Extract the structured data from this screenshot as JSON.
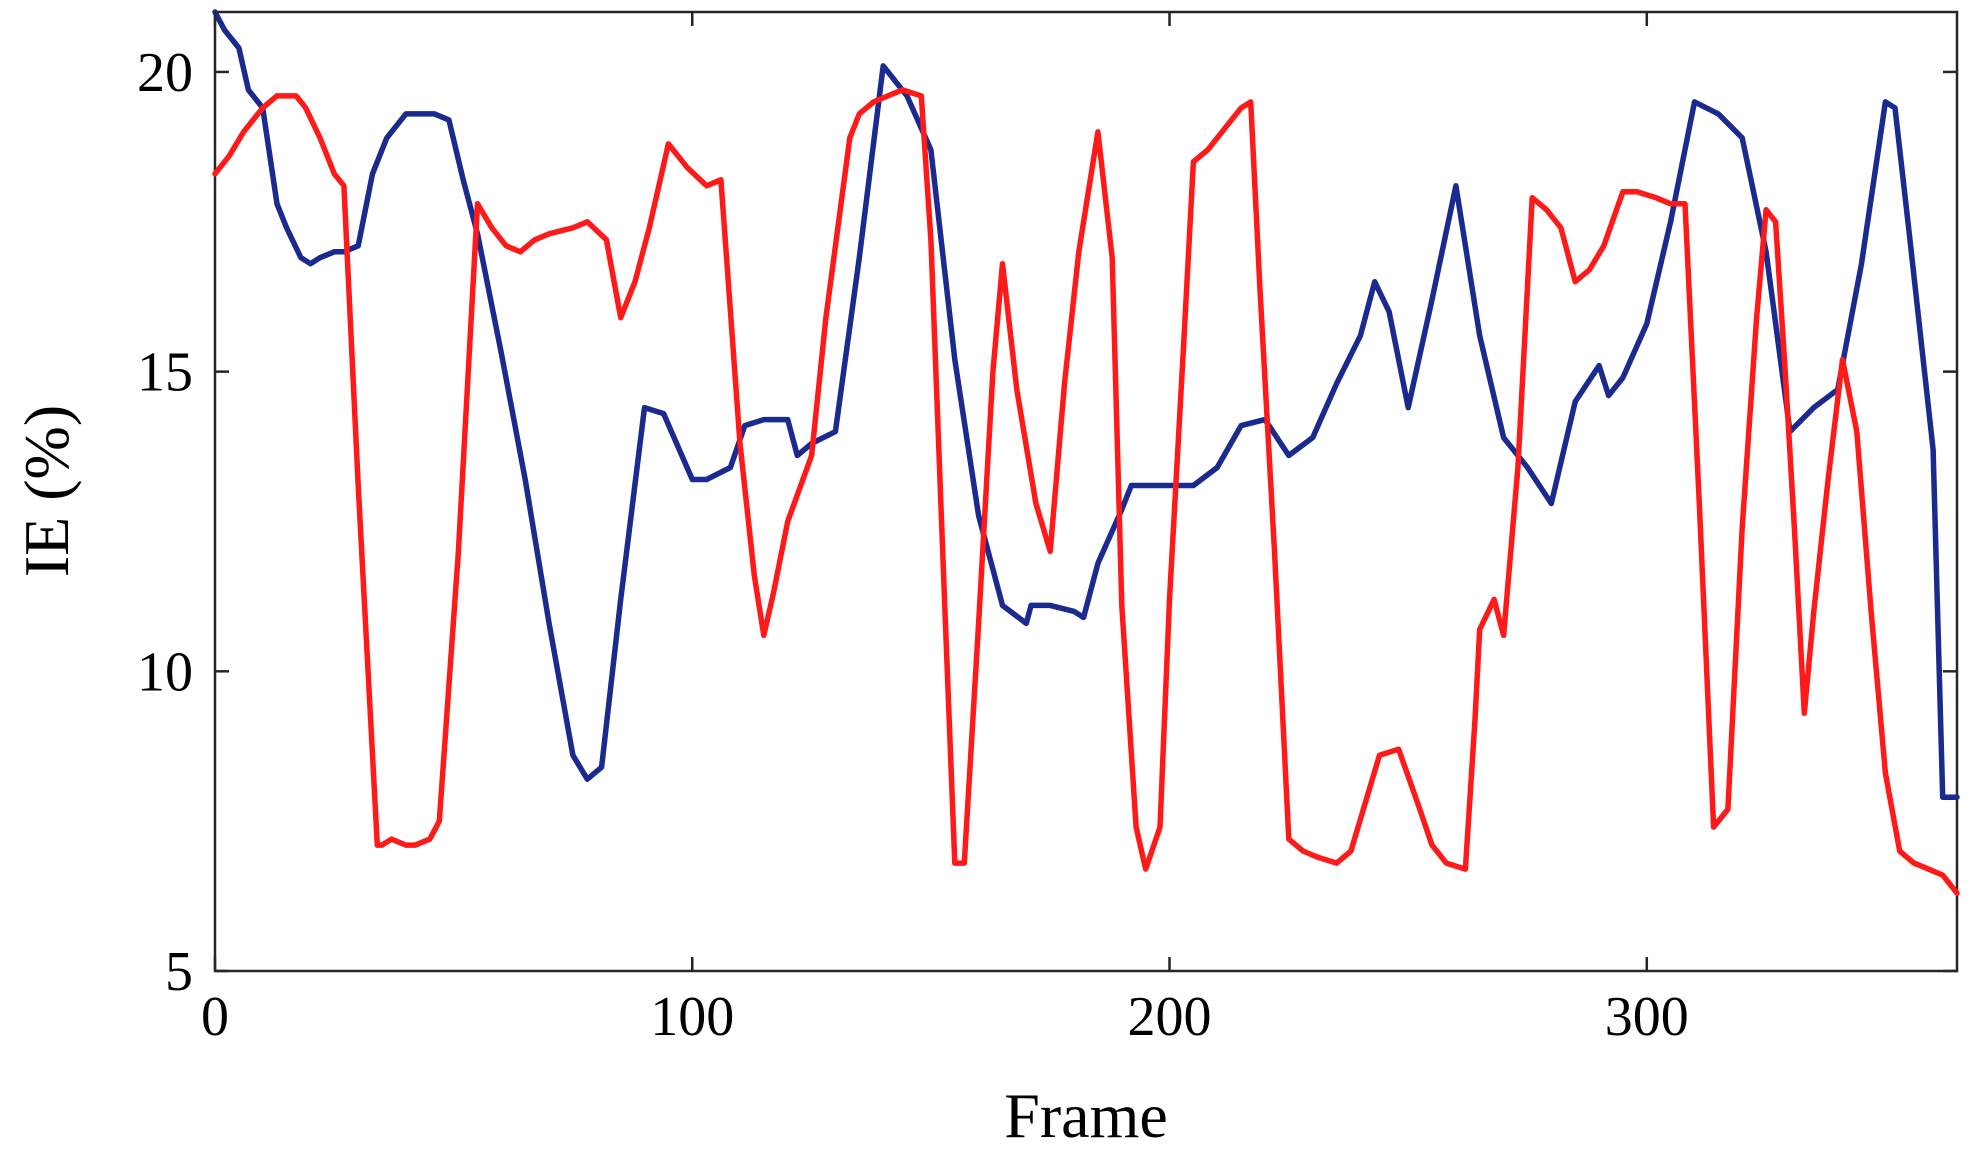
{
  "chart_data": {
    "type": "line",
    "xlabel": "Frame",
    "ylabel": "IE (%)",
    "xlim": [
      0,
      365
    ],
    "ylim": [
      5,
      21
    ],
    "xticks": [
      0,
      100,
      200,
      300
    ],
    "yticks": [
      5,
      10,
      15,
      20
    ],
    "grid": false,
    "legend": "none",
    "series": [
      {
        "color": "#1a2a8f",
        "x": [
          0,
          2,
          5,
          7,
          10,
          13,
          15,
          18,
          20,
          22,
          25,
          27,
          30,
          33,
          36,
          40,
          43,
          46,
          49,
          52,
          55,
          60,
          65,
          70,
          75,
          78,
          81,
          85,
          90,
          94,
          100,
          103,
          108,
          111,
          115,
          120,
          122,
          125,
          130,
          135,
          140,
          145,
          150,
          155,
          160,
          165,
          170,
          171,
          175,
          180,
          182,
          185,
          190,
          192,
          195,
          200,
          205,
          210,
          215,
          220,
          225,
          230,
          235,
          240,
          243,
          246,
          250,
          255,
          260,
          265,
          270,
          275,
          280,
          285,
          290,
          292,
          295,
          300,
          305,
          310,
          315,
          320,
          325,
          330,
          335,
          340,
          345,
          350,
          352,
          355,
          360,
          362,
          365
        ],
        "y": [
          21.0,
          20.7,
          20.4,
          19.7,
          19.4,
          17.8,
          17.4,
          16.9,
          16.8,
          16.9,
          17.0,
          17.0,
          17.1,
          18.3,
          18.9,
          19.3,
          19.3,
          19.3,
          19.2,
          18.2,
          17.3,
          15.3,
          13.2,
          10.8,
          8.6,
          8.2,
          8.4,
          11.2,
          14.4,
          14.3,
          13.2,
          13.2,
          13.4,
          14.1,
          14.2,
          14.2,
          13.6,
          13.8,
          14.0,
          16.9,
          20.1,
          19.6,
          18.7,
          15.2,
          12.6,
          11.1,
          10.8,
          11.1,
          11.1,
          11.0,
          10.9,
          11.8,
          12.7,
          13.1,
          13.1,
          13.1,
          13.1,
          13.4,
          14.1,
          14.2,
          13.6,
          13.9,
          14.8,
          15.6,
          16.5,
          16.0,
          14.4,
          16.2,
          18.1,
          15.6,
          13.9,
          13.4,
          12.8,
          14.5,
          15.1,
          14.6,
          14.9,
          15.8,
          17.5,
          19.5,
          19.3,
          18.9,
          17.0,
          14.0,
          14.4,
          14.7,
          16.8,
          19.5,
          19.4,
          17.3,
          13.7,
          7.9,
          7.9
        ]
      },
      {
        "color": "#ff1a1a",
        "x": [
          0,
          3,
          6,
          10,
          13,
          15,
          17,
          19,
          22,
          25,
          27,
          30,
          34,
          35,
          37,
          40,
          42,
          45,
          47,
          51,
          55,
          58,
          61,
          64,
          67,
          70,
          75,
          78,
          82,
          85,
          88,
          91,
          95,
          99,
          103,
          106,
          110,
          113,
          115,
          117,
          120,
          125,
          128,
          133,
          135,
          138,
          141,
          144,
          148,
          150,
          153,
          155,
          157,
          160,
          163,
          165,
          168,
          172,
          175,
          178,
          181,
          185,
          188,
          190,
          193,
          195,
          198,
          200,
          203,
          205,
          208,
          211,
          215,
          217,
          219,
          222,
          225,
          228,
          231,
          235,
          238,
          241,
          244,
          248,
          252,
          255,
          258,
          262,
          264,
          265,
          268,
          270,
          273,
          276,
          279,
          282,
          285,
          288,
          291,
          295,
          298,
          302,
          305,
          308,
          311,
          314,
          317,
          320,
          323,
          325,
          327,
          329,
          331,
          333,
          335,
          338,
          341,
          344,
          347,
          350,
          353,
          356,
          359,
          362,
          365
        ],
        "y": [
          18.3,
          18.6,
          19.0,
          19.4,
          19.6,
          19.6,
          19.6,
          19.4,
          18.9,
          18.3,
          18.1,
          13.1,
          7.1,
          7.1,
          7.2,
          7.1,
          7.1,
          7.2,
          7.5,
          12.0,
          17.8,
          17.4,
          17.1,
          17.0,
          17.2,
          17.3,
          17.4,
          17.5,
          17.2,
          15.9,
          16.5,
          17.4,
          18.8,
          18.4,
          18.1,
          18.2,
          13.8,
          11.6,
          10.6,
          11.3,
          12.5,
          13.6,
          15.9,
          18.9,
          19.3,
          19.5,
          19.6,
          19.7,
          19.6,
          17.2,
          10.9,
          6.8,
          6.8,
          10.8,
          15.0,
          16.8,
          14.7,
          12.8,
          12.0,
          14.8,
          17.0,
          19.0,
          16.9,
          11.1,
          7.4,
          6.7,
          7.4,
          11.2,
          15.5,
          18.5,
          18.7,
          19.0,
          19.4,
          19.5,
          16.3,
          12.0,
          7.2,
          7.0,
          6.9,
          6.8,
          7.0,
          7.8,
          8.6,
          8.7,
          7.8,
          7.1,
          6.8,
          6.7,
          9.2,
          10.7,
          11.2,
          10.6,
          13.4,
          17.9,
          17.7,
          17.4,
          16.5,
          16.7,
          17.1,
          18.0,
          18.0,
          17.9,
          17.8,
          17.8,
          12.8,
          7.4,
          7.7,
          12.4,
          15.9,
          17.7,
          17.5,
          15.0,
          12.3,
          9.3,
          11.0,
          13.2,
          15.2,
          14.0,
          11.0,
          8.3,
          7.0,
          6.8,
          6.7,
          6.6,
          6.3
        ]
      }
    ]
  }
}
